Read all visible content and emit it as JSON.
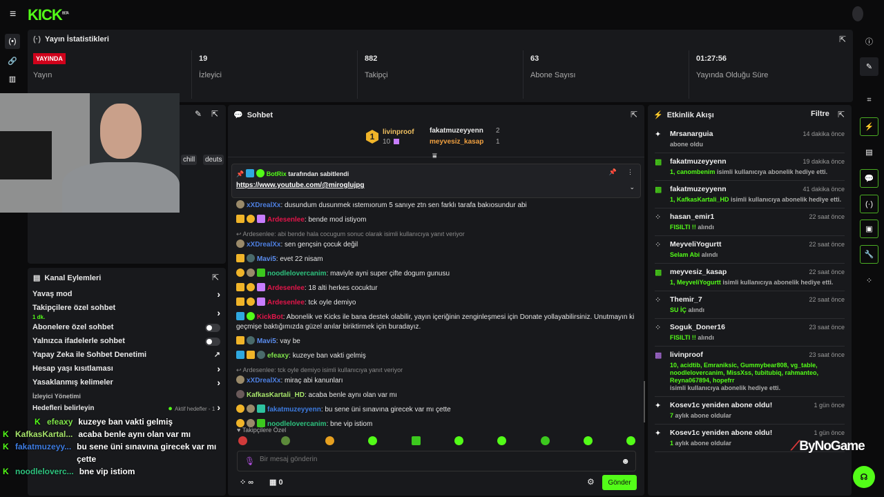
{
  "topbar": {
    "logo": "KICK",
    "logo_sup": "BETA",
    "menu_icon": "hamburger-icon"
  },
  "left_rail": {
    "icons": [
      "broadcast-icon",
      "link-icon",
      "chart-icon"
    ]
  },
  "stats": {
    "title": "Yayın İstatistikleri",
    "live_badge": "YAYINDA",
    "live_label": "Yayın",
    "items": [
      {
        "value": "19",
        "label": "İzleyici"
      },
      {
        "value": "882",
        "label": "Takipçi"
      },
      {
        "value": "63",
        "label": "Abone Sayısı"
      },
      {
        "value": "01:27:56",
        "label": "Yayında Olduğu Süre"
      }
    ]
  },
  "stream_panel": {
    "tags": [
      "chill",
      "deuts"
    ]
  },
  "channel_actions": {
    "title": "Kanal Eylemleri",
    "items": [
      {
        "label": "Yavaş mod",
        "control": "chevron"
      },
      {
        "label": "Takipçilere özel sohbet",
        "sub": "1 dk.",
        "control": "chevron"
      },
      {
        "label": "Abonelere özel sohbet",
        "control": "toggle",
        "on": false
      },
      {
        "label": "Yalnızca ifadelerle sohbet",
        "control": "toggle",
        "on": false
      },
      {
        "label": "Yapay Zeka ile Sohbet Denetimi",
        "control": "external"
      },
      {
        "label": "Hesap yaşı kısıtlaması",
        "control": "chevron"
      },
      {
        "label": "Yasaklanmış kelimeler",
        "control": "chevron"
      },
      {
        "label": "İzleyici Yönetimi"
      },
      {
        "label": "Hedefleri belirleyin",
        "status": "Aktif hedefler - 1",
        "control": "chevron"
      }
    ]
  },
  "chat": {
    "title": "Sohbet",
    "leaderboard": {
      "first": {
        "rank": "1",
        "name": "livinproof",
        "count": "10"
      },
      "others": [
        {
          "name": "fakatmuzeyyenn",
          "count": "2",
          "color": "#ffffff"
        },
        {
          "name": "meyvesiz_kasap",
          "count": "1",
          "color": "#f0a040"
        }
      ]
    },
    "pinned": {
      "by": "BotRix",
      "by_suffix": "tarafından sabitlendi",
      "link": "https://www.youtube.com/@miroglujpg"
    },
    "messages": [
      {
        "badges": [
          "og"
        ],
        "user": "xXDrealXx",
        "color": "#4d7fe0",
        "text": "dusundum dusunmek ıstemıorum 5 sanıye ztn sen farklı tarafa bakıosundur abi"
      },
      {
        "badges": [
          "crown",
          "one",
          "gift-purple"
        ],
        "user": "Ardesenlee",
        "color": "#e3154a",
        "text": "bende mod istiyom"
      },
      {
        "reply": "Ardesenlee: abi bende hala cocugum sonuc olarak isimli kullanıcıya yanıt veriyor",
        "badges": [
          "og"
        ],
        "user": "xXDrealXx",
        "color": "#4d7fe0",
        "text": "sen gençsin çocuk değil"
      },
      {
        "badges": [
          "crown",
          "shield"
        ],
        "user": "Mavi5",
        "color": "#5b8def",
        "text": "evet 22 nisam"
      },
      {
        "badges": [
          "one",
          "og",
          "gift-green"
        ],
        "user": "noodlelovercanim",
        "color": "#2ec27e",
        "text": "maviyle ayni super çifte dogum gunusu"
      },
      {
        "badges": [
          "crown",
          "one",
          "gift-purple"
        ],
        "user": "Ardesenlee",
        "color": "#e3154a",
        "text": "18 alti herkes cocuktur"
      },
      {
        "badges": [
          "crown",
          "one",
          "gift-purple"
        ],
        "user": "Ardesenlee",
        "color": "#e3154a",
        "text": "tck oyle demiyo"
      },
      {
        "badges": [
          "mod",
          "verified"
        ],
        "user": "KickBot",
        "color": "#e3154a",
        "text": "Abonelik ve Kicks ile bana destek olabilir, yayın içeriğinin zenginleşmesi için Donate yollayabilirsiniz. Unutmayın ki geçmişe baktığımızda güzel anılar biriktirmek için buradayız."
      },
      {
        "badges": [
          "crown",
          "shield"
        ],
        "user": "Mavi5",
        "color": "#5b8def",
        "text": "vay be"
      },
      {
        "badges": [
          "mod",
          "crown",
          "shield"
        ],
        "user": "efeaxy",
        "color": "#7fe34a",
        "text": "kuzeye ban vakti gelmiş"
      },
      {
        "reply": "Ardesenlee: tck oyle demiyo isimli kullanıcıya yanıt veriyor",
        "badges": [
          "og"
        ],
        "user": "xXDrealXx",
        "color": "#4d7fe0",
        "text": "miraç abi kanunları"
      },
      {
        "badges": [
          "og-dark"
        ],
        "user": "KafkasKartali_HD",
        "color": "#a6e36a",
        "text": "acaba benle aynı olan var mı"
      },
      {
        "badges": [
          "one",
          "og",
          "gift-teal"
        ],
        "user": "fakatmuzeyyenn",
        "color": "#3d7be0",
        "text": "bu sene üni sınavına girecek var mı çette"
      },
      {
        "badges": [
          "one",
          "og",
          "gift-green"
        ],
        "user": "noodlelovercanim",
        "color": "#2ec27e",
        "text": "bne vip istiom"
      }
    ],
    "emote_section": "Takipçilere Özel",
    "input_placeholder": "Bir mesaj gönderin",
    "kicks_value": "∞",
    "store_value": "0",
    "send_label": "Gönder"
  },
  "activity": {
    "title": "Etkinlik Akışı",
    "filter_label": "Filtre",
    "events": [
      {
        "icon": "sparkle",
        "user": "Mrsanarguia",
        "time": "14 dakika önce",
        "detail": "abone oldu"
      },
      {
        "icon": "gift-green",
        "user": "fakatmuzeyyenn",
        "time": "19 dakika önce",
        "highlight": "1, canombenim",
        "detail": "isimli kullanıcıya abonelik hediye etti."
      },
      {
        "icon": "gift-green",
        "user": "fakatmuzeyyenn",
        "time": "41 dakika önce",
        "highlight": "1, KafkasKartali_HD",
        "detail": "isimli kullanıcıya abonelik hediye etti."
      },
      {
        "icon": "kicks",
        "user": "hasan_emir1",
        "time": "22 saat önce",
        "highlight": "FISILTI !!",
        "detail": "alındı"
      },
      {
        "icon": "kicks",
        "user": "MeyveliYogurtt",
        "time": "22 saat önce",
        "highlight": "Selam Abi",
        "detail": "alındı"
      },
      {
        "icon": "gift-green",
        "user": "meyvesiz_kasap",
        "time": "22 saat önce",
        "highlight": "1, MeyveliYogurtt",
        "detail": "isimli kullanıcıya abonelik hediye etti."
      },
      {
        "icon": "kicks",
        "user": "Themir_7",
        "time": "22 saat önce",
        "highlight": "SU İÇ",
        "detail": "alındı"
      },
      {
        "icon": "kicks",
        "user": "Soguk_Doner16",
        "time": "23 saat önce",
        "highlight": "FISILTI !!",
        "detail": "alındı"
      },
      {
        "icon": "gift-purple",
        "user": "livinproof",
        "time": "23 saat önce",
        "highlight": "10, acidtib, Emraniksic, Gummybear808, vg_table, noodlelovercanim, MissXss, tubitubiq, rahmanteo, Reyna067894, hopefrr",
        "detail": "isimli kullanıcıya abonelik hediye etti."
      },
      {
        "icon": "sparkle",
        "user": "Kosev1c yeniden abone oldu!",
        "time": "1 gün önce",
        "highlight": "7",
        "detail": "aylık abone oldular"
      },
      {
        "icon": "sparkle",
        "user": "Kosev1c yeniden abone oldu!",
        "time": "1 gün önce",
        "highlight": "1",
        "detail": "aylık abone oldular"
      }
    ]
  },
  "right_rail": {
    "icons": [
      "info-icon",
      "pencil-icon",
      "screenshot-icon",
      "lightning-icon",
      "notes-icon",
      "chat-icon",
      "broadcast-icon",
      "channel-actions-icon",
      "wrench-icon",
      "kicks-icon"
    ]
  },
  "overlay_chat": [
    {
      "user": "efeaxy",
      "color": "#7fe34a",
      "text": "kuzeye ban vakti gelmiş"
    },
    {
      "user": "KafkasKartal...",
      "color": "#a6e36a",
      "text": "acaba benle aynı olan var mı"
    },
    {
      "user": "fakatmuzeyy...",
      "color": "#3d7be0",
      "text": "bu sene üni sınavına girecek var mı çette"
    },
    {
      "user": "noodleloverc...",
      "color": "#2ec27e",
      "text": "bne vip istiom"
    }
  ],
  "watermark": "ByNoGame",
  "colors": {
    "accent": "#53fc18",
    "live": "#d0021b",
    "panel": "#18191c",
    "bg": "#0b0b0c"
  }
}
